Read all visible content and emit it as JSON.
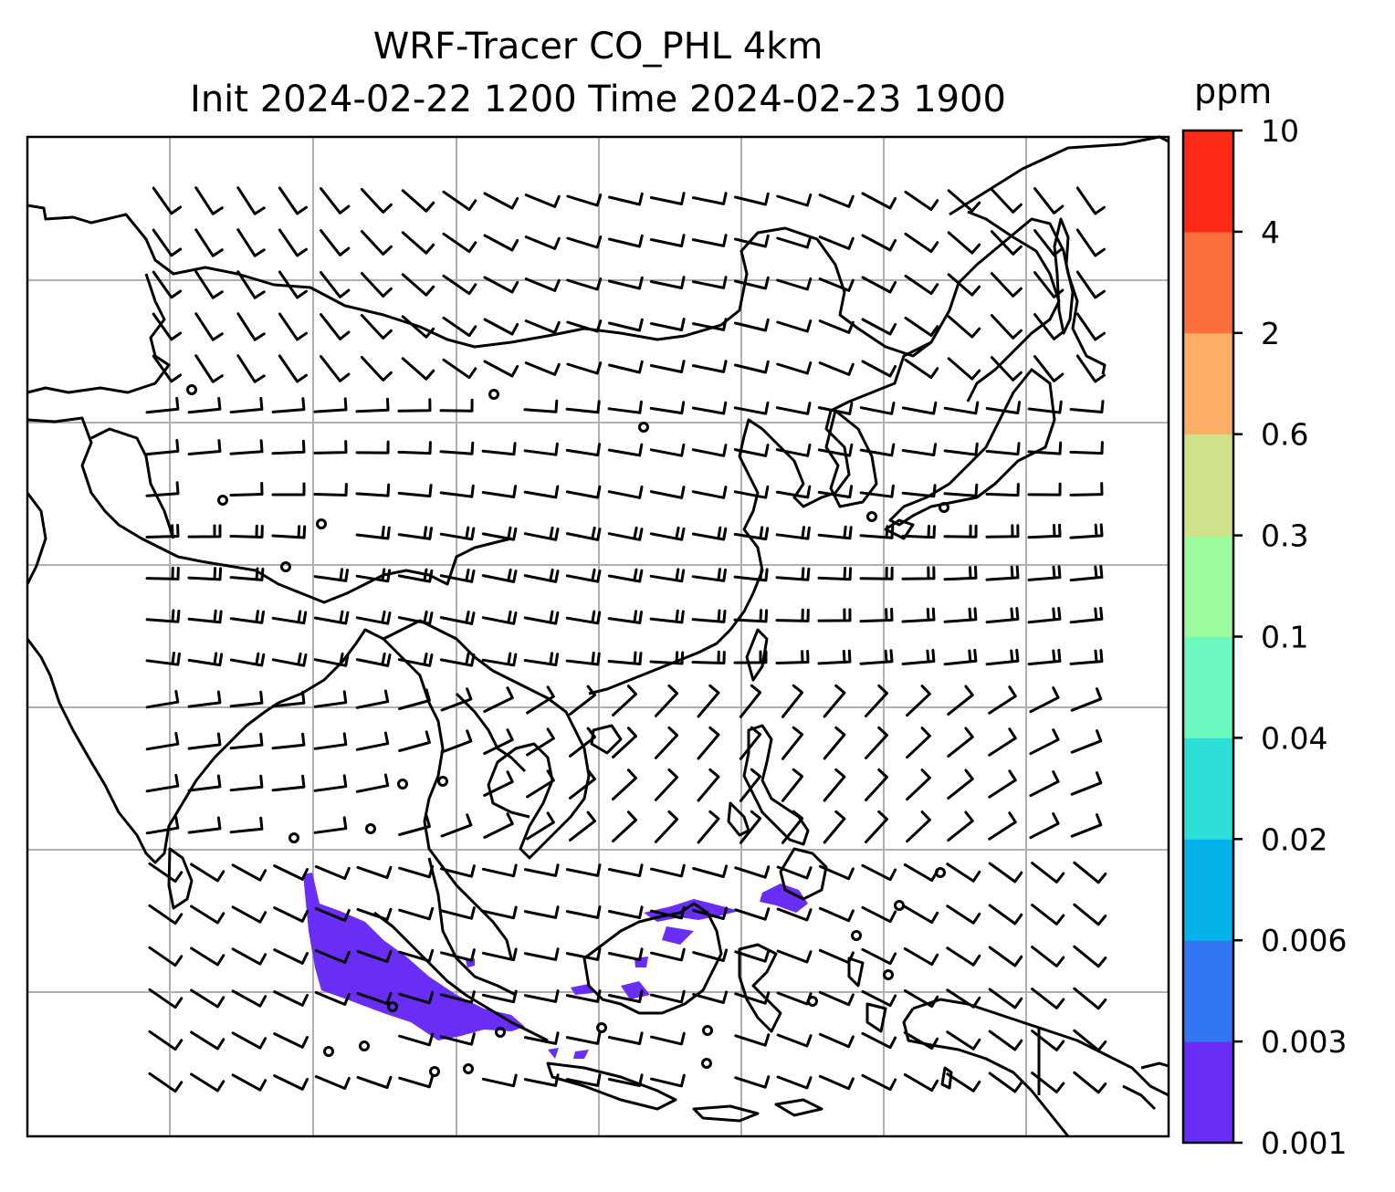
{
  "title": {
    "line1": "WRF-Tracer CO_PHL 4km",
    "line2": "Init 2024-02-22 1200 Time 2024-02-23 1900"
  },
  "colorbar": {
    "unit": "ppm",
    "levels": [
      "0.001",
      "0.003",
      "0.006",
      "0.02",
      "0.04",
      "0.1",
      "0.3",
      "0.6",
      "2",
      "4",
      "10"
    ],
    "colors": [
      "#6a2df5",
      "#3276f2",
      "#06b2ea",
      "#2ddfd6",
      "#6bf9bf",
      "#9cfb9d",
      "#cfe28a",
      "#fcaf64",
      "#fe6f3e",
      "#fd2a17"
    ]
  },
  "map": {
    "gridlines": true,
    "coastline_color": "#000000",
    "grid_color": "#b0b0b0",
    "tracer_color": "#6a2df5",
    "wind_barbs": true
  }
}
